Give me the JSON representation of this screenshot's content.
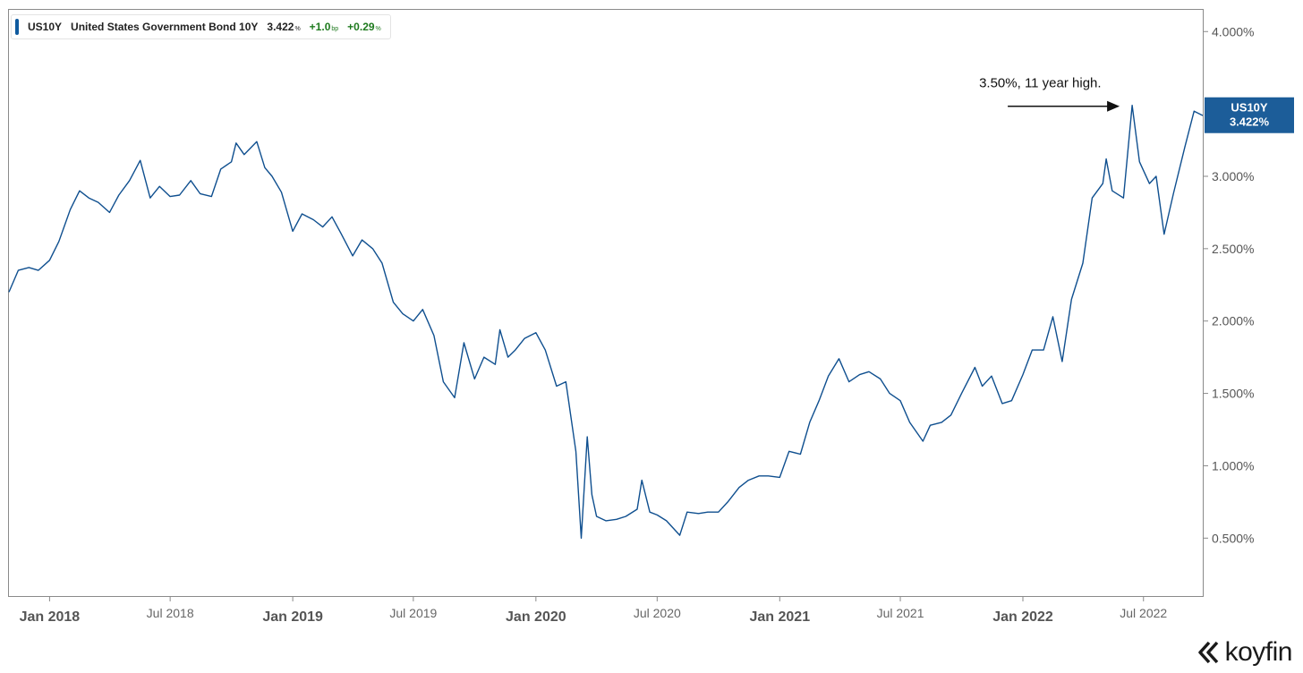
{
  "legend": {
    "ticker": "US10Y",
    "name": "United States Government Bond 10Y",
    "price": "3.422",
    "price_unit": "%",
    "change_bp": "+1.0",
    "change_bp_unit": "bp",
    "change_pct": "+0.29",
    "change_pct_unit": "%",
    "swatch_color": "#0f5a9e"
  },
  "annotation": {
    "text": "3.50%, 11 year high."
  },
  "last_price_tag": {
    "ticker": "US10Y",
    "value": "3.422%",
    "color": "#1c5d99"
  },
  "logo": {
    "text": "koyfin"
  },
  "chart_data": {
    "type": "line",
    "title": "",
    "xlabel": "",
    "ylabel": "",
    "line_color": "#0f4f8f",
    "ylim": [
      0.1,
      4.15
    ],
    "x_range": [
      "2017-11-01",
      "2022-09-28"
    ],
    "y_ticks": [
      {
        "value": 0.5,
        "label": "0.500%"
      },
      {
        "value": 1.0,
        "label": "1.000%"
      },
      {
        "value": 1.5,
        "label": "1.500%"
      },
      {
        "value": 2.0,
        "label": "2.000%"
      },
      {
        "value": 2.5,
        "label": "2.500%"
      },
      {
        "value": 3.0,
        "label": "3.000%"
      },
      {
        "value": 4.0,
        "label": "4.000%"
      }
    ],
    "x_ticks": [
      {
        "date": "2018-01-01",
        "label": "Jan 2018",
        "major": true
      },
      {
        "date": "2018-07-01",
        "label": "Jul 2018",
        "major": false
      },
      {
        "date": "2019-01-01",
        "label": "Jan 2019",
        "major": true
      },
      {
        "date": "2019-07-01",
        "label": "Jul 2019",
        "major": false
      },
      {
        "date": "2020-01-01",
        "label": "Jan 2020",
        "major": true
      },
      {
        "date": "2020-07-01",
        "label": "Jul 2020",
        "major": false
      },
      {
        "date": "2021-01-01",
        "label": "Jan 2021",
        "major": true
      },
      {
        "date": "2021-07-01",
        "label": "Jul 2021",
        "major": false
      },
      {
        "date": "2022-01-01",
        "label": "Jan 2022",
        "major": true
      },
      {
        "date": "2022-07-01",
        "label": "Jul 2022",
        "major": false
      }
    ],
    "series": [
      {
        "name": "US10Y",
        "points": [
          [
            "2017-11-01",
            2.2
          ],
          [
            "2017-11-15",
            2.35
          ],
          [
            "2017-12-01",
            2.37
          ],
          [
            "2017-12-15",
            2.35
          ],
          [
            "2018-01-01",
            2.42
          ],
          [
            "2018-01-15",
            2.55
          ],
          [
            "2018-02-01",
            2.77
          ],
          [
            "2018-02-15",
            2.9
          ],
          [
            "2018-03-01",
            2.85
          ],
          [
            "2018-03-15",
            2.82
          ],
          [
            "2018-04-01",
            2.75
          ],
          [
            "2018-04-15",
            2.87
          ],
          [
            "2018-05-01",
            2.97
          ],
          [
            "2018-05-17",
            3.11
          ],
          [
            "2018-06-01",
            2.85
          ],
          [
            "2018-06-15",
            2.93
          ],
          [
            "2018-07-01",
            2.86
          ],
          [
            "2018-07-15",
            2.87
          ],
          [
            "2018-08-01",
            2.97
          ],
          [
            "2018-08-15",
            2.88
          ],
          [
            "2018-09-01",
            2.86
          ],
          [
            "2018-09-15",
            3.05
          ],
          [
            "2018-10-01",
            3.1
          ],
          [
            "2018-10-08",
            3.23
          ],
          [
            "2018-10-20",
            3.15
          ],
          [
            "2018-11-08",
            3.24
          ],
          [
            "2018-11-20",
            3.06
          ],
          [
            "2018-12-01",
            3.0
          ],
          [
            "2018-12-15",
            2.89
          ],
          [
            "2019-01-01",
            2.62
          ],
          [
            "2019-01-15",
            2.74
          ],
          [
            "2019-02-01",
            2.7
          ],
          [
            "2019-02-15",
            2.65
          ],
          [
            "2019-03-01",
            2.72
          ],
          [
            "2019-03-15",
            2.6
          ],
          [
            "2019-04-01",
            2.45
          ],
          [
            "2019-04-15",
            2.56
          ],
          [
            "2019-05-01",
            2.5
          ],
          [
            "2019-05-15",
            2.4
          ],
          [
            "2019-06-01",
            2.13
          ],
          [
            "2019-06-15",
            2.05
          ],
          [
            "2019-07-01",
            2.0
          ],
          [
            "2019-07-15",
            2.08
          ],
          [
            "2019-08-01",
            1.9
          ],
          [
            "2019-08-15",
            1.58
          ],
          [
            "2019-09-01",
            1.47
          ],
          [
            "2019-09-15",
            1.85
          ],
          [
            "2019-10-01",
            1.6
          ],
          [
            "2019-10-15",
            1.75
          ],
          [
            "2019-11-01",
            1.7
          ],
          [
            "2019-11-08",
            1.94
          ],
          [
            "2019-11-20",
            1.75
          ],
          [
            "2019-12-01",
            1.8
          ],
          [
            "2019-12-15",
            1.88
          ],
          [
            "2020-01-01",
            1.92
          ],
          [
            "2020-01-15",
            1.8
          ],
          [
            "2020-02-01",
            1.55
          ],
          [
            "2020-02-15",
            1.58
          ],
          [
            "2020-03-01",
            1.1
          ],
          [
            "2020-03-09",
            0.5
          ],
          [
            "2020-03-18",
            1.2
          ],
          [
            "2020-03-25",
            0.8
          ],
          [
            "2020-04-01",
            0.65
          ],
          [
            "2020-04-15",
            0.62
          ],
          [
            "2020-05-01",
            0.63
          ],
          [
            "2020-05-15",
            0.65
          ],
          [
            "2020-06-01",
            0.7
          ],
          [
            "2020-06-08",
            0.9
          ],
          [
            "2020-06-20",
            0.68
          ],
          [
            "2020-07-01",
            0.66
          ],
          [
            "2020-07-15",
            0.62
          ],
          [
            "2020-08-04",
            0.52
          ],
          [
            "2020-08-15",
            0.68
          ],
          [
            "2020-09-01",
            0.67
          ],
          [
            "2020-09-15",
            0.68
          ],
          [
            "2020-10-01",
            0.68
          ],
          [
            "2020-10-15",
            0.75
          ],
          [
            "2020-11-01",
            0.85
          ],
          [
            "2020-11-15",
            0.9
          ],
          [
            "2020-12-01",
            0.93
          ],
          [
            "2020-12-15",
            0.93
          ],
          [
            "2021-01-01",
            0.92
          ],
          [
            "2021-01-15",
            1.1
          ],
          [
            "2021-02-01",
            1.08
          ],
          [
            "2021-02-15",
            1.3
          ],
          [
            "2021-03-01",
            1.45
          ],
          [
            "2021-03-15",
            1.62
          ],
          [
            "2021-03-31",
            1.74
          ],
          [
            "2021-04-15",
            1.58
          ],
          [
            "2021-05-01",
            1.63
          ],
          [
            "2021-05-15",
            1.65
          ],
          [
            "2021-06-01",
            1.6
          ],
          [
            "2021-06-15",
            1.5
          ],
          [
            "2021-07-01",
            1.45
          ],
          [
            "2021-07-15",
            1.3
          ],
          [
            "2021-08-04",
            1.17
          ],
          [
            "2021-08-15",
            1.28
          ],
          [
            "2021-09-01",
            1.3
          ],
          [
            "2021-09-15",
            1.35
          ],
          [
            "2021-10-01",
            1.5
          ],
          [
            "2021-10-21",
            1.68
          ],
          [
            "2021-11-01",
            1.55
          ],
          [
            "2021-11-15",
            1.62
          ],
          [
            "2021-12-01",
            1.43
          ],
          [
            "2021-12-15",
            1.45
          ],
          [
            "2022-01-01",
            1.63
          ],
          [
            "2022-01-15",
            1.8
          ],
          [
            "2022-02-01",
            1.8
          ],
          [
            "2022-02-15",
            2.03
          ],
          [
            "2022-03-01",
            1.72
          ],
          [
            "2022-03-15",
            2.15
          ],
          [
            "2022-04-01",
            2.4
          ],
          [
            "2022-04-15",
            2.85
          ],
          [
            "2022-05-01",
            2.95
          ],
          [
            "2022-05-06",
            3.12
          ],
          [
            "2022-05-15",
            2.9
          ],
          [
            "2022-06-01",
            2.85
          ],
          [
            "2022-06-14",
            3.49
          ],
          [
            "2022-06-25",
            3.1
          ],
          [
            "2022-07-10",
            2.95
          ],
          [
            "2022-07-20",
            3.0
          ],
          [
            "2022-08-01",
            2.6
          ],
          [
            "2022-08-15",
            2.88
          ],
          [
            "2022-09-01",
            3.2
          ],
          [
            "2022-09-15",
            3.45
          ],
          [
            "2022-09-28",
            3.42
          ]
        ]
      }
    ],
    "annotation_target": {
      "date": "2022-06-14",
      "value": 3.49
    },
    "last_value": 3.422,
    "grid": false,
    "legend_position": "top-left"
  }
}
